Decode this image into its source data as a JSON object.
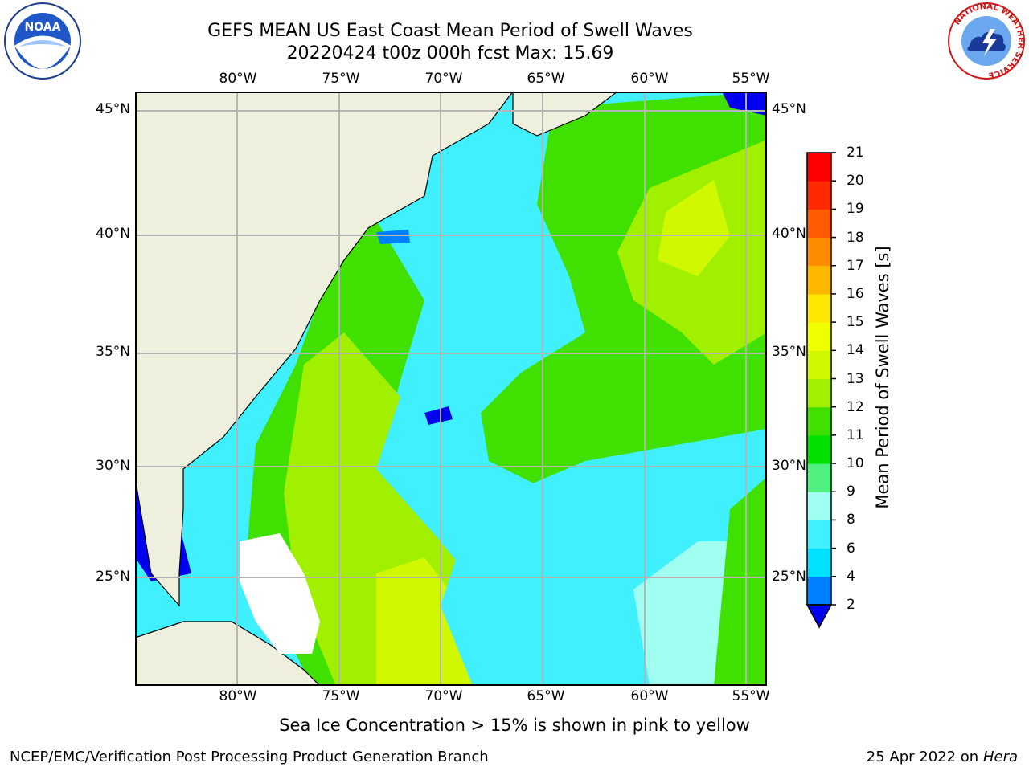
{
  "title": {
    "line1": "GEFS MEAN US East Coast Mean Period of Swell Waves",
    "line2": "20220424 t00z 000h fcst   Max: 15.69"
  },
  "axes": {
    "lon_labels": [
      "80°W",
      "75°W",
      "70°W",
      "65°W",
      "60°W",
      "55°W"
    ],
    "lat_labels": [
      "45°N",
      "40°N",
      "35°N",
      "30°N",
      "25°N"
    ],
    "lon_range": [
      -85,
      -54
    ],
    "lat_range": [
      20.5,
      46
    ],
    "grid": true
  },
  "colorbar": {
    "label": "Mean Period of Swell Waves [s]",
    "ticks": [
      "2",
      "4",
      "6",
      "8",
      "9",
      "10",
      "11",
      "12",
      "13",
      "14",
      "15",
      "16",
      "17",
      "18",
      "19",
      "20",
      "21"
    ],
    "colors": [
      "#0080ff",
      "#00e0ff",
      "#40f0ff",
      "#a0fff0",
      "#50f080",
      "#00e000",
      "#40e000",
      "#a0f000",
      "#d0f800",
      "#f0ff00",
      "#ffe800",
      "#ffb800",
      "#ff8c00",
      "#ff5a00",
      "#ff2a00",
      "#ff0000"
    ],
    "under_color": "#0000ee"
  },
  "note": "Sea Ice Concentration > 15% is shown in pink to yellow",
  "footer": {
    "left": "NCEP/EMC/Verification Post Processing Product Generation Branch",
    "right_date": "25 Apr 2022 on ",
    "right_host": "Hera"
  },
  "logos": {
    "noaa_text": "NOAA",
    "nws_text": "NATIONAL WEATHER SERVICE"
  },
  "colors": {
    "land": "#efefde",
    "grid": "#b4b4b4",
    "coast": "#000000"
  }
}
